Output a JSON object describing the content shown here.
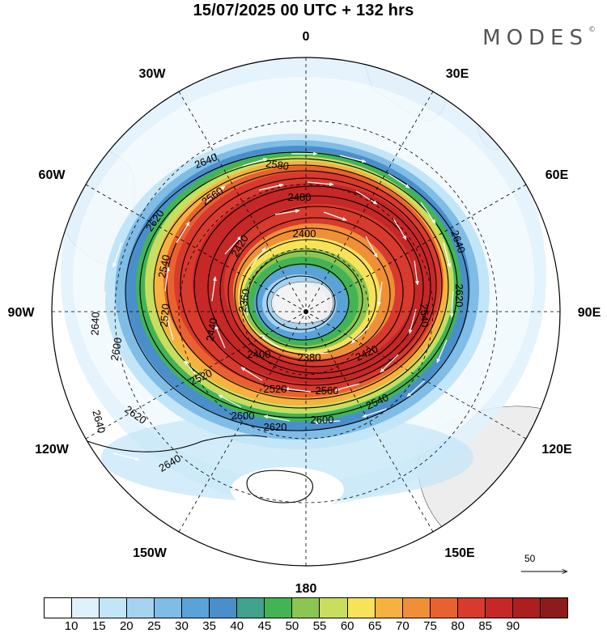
{
  "title": "15/07/2025  00 UTC  + 132 hrs",
  "brand": "MODES",
  "brand_mark": "©",
  "longitude_labels": [
    "0",
    "30E",
    "60E",
    "90E",
    "120E",
    "150E",
    "180",
    "150W",
    "120W",
    "90W",
    "60W",
    "30W"
  ],
  "contour_labels": [
    "2640",
    "2620",
    "2600",
    "2580",
    "2560",
    "2540",
    "2520",
    "2500",
    "2480",
    "2460",
    "2440",
    "2420",
    "2400",
    "2380",
    "2360"
  ],
  "reference_vector": {
    "label": "50"
  },
  "colorbar": {
    "ticks": [
      "10",
      "15",
      "20",
      "25",
      "30",
      "35",
      "40",
      "45",
      "50",
      "55",
      "60",
      "65",
      "70",
      "75",
      "80",
      "85",
      "90"
    ],
    "colors": [
      "#ffffff",
      "#dff1fb",
      "#c3e5f8",
      "#a6d3f0",
      "#7fbce6",
      "#5aa3d9",
      "#4a8fca",
      "#3fa38f",
      "#43b456",
      "#8cc652",
      "#c9dd5e",
      "#f7e25a",
      "#f6b13f",
      "#f08f36",
      "#e9612f",
      "#d83a2d",
      "#c62727",
      "#ac1f1f",
      "#8e1b1b"
    ]
  }
}
